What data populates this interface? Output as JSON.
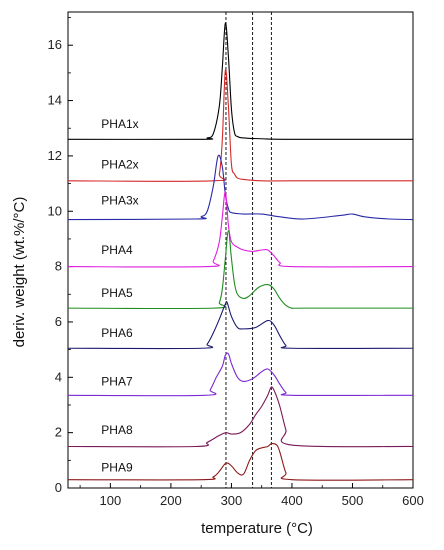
{
  "chart_data": {
    "type": "line",
    "xlabel": "temperature (°C)",
    "ylabel": "deriv. weight (wt.%/°C)",
    "xlim": [
      30,
      600
    ],
    "ylim": [
      0,
      17.2
    ],
    "x_ticks": [
      100,
      200,
      300,
      400,
      500,
      600
    ],
    "y_ticks": [
      0,
      2,
      4,
      6,
      8,
      10,
      12,
      14,
      16
    ],
    "grid": false,
    "legend": "none",
    "reference_lines_x": [
      291,
      335,
      366
    ],
    "series": [
      {
        "name": "PHA1x",
        "color": "#000000",
        "x": [
          30,
          250,
          260,
          270,
          280,
          285,
          290,
          295,
          300,
          305,
          310,
          320,
          350,
          400,
          600
        ],
        "y": [
          12.6,
          12.6,
          12.65,
          12.8,
          13.8,
          15.2,
          16.8,
          15.6,
          13.7,
          12.85,
          12.7,
          12.65,
          12.62,
          12.6,
          12.6
        ]
      },
      {
        "name": "PHA2x",
        "color": "#d42a2a",
        "x": [
          30,
          270,
          280,
          285,
          290,
          295,
          300,
          305,
          310,
          320,
          350,
          400,
          600
        ],
        "y": [
          11.1,
          11.1,
          11.35,
          12.6,
          15.1,
          13.8,
          11.7,
          11.35,
          11.2,
          11.15,
          11.1,
          11.1,
          11.1
        ]
      },
      {
        "name": "PHA3x",
        "color": "#2a2aa8",
        "x": [
          30,
          240,
          250,
          260,
          270,
          278,
          285,
          290,
          295,
          300,
          320,
          350,
          380,
          420,
          480,
          500,
          520,
          560,
          600
        ],
        "y": [
          9.7,
          9.72,
          9.8,
          10.0,
          10.9,
          12.0,
          11.6,
          10.6,
          10.1,
          9.95,
          9.9,
          9.9,
          9.8,
          9.72,
          9.85,
          9.9,
          9.8,
          9.72,
          9.7
        ]
      },
      {
        "name": "PHA4",
        "color": "#e01ee0",
        "x": [
          30,
          260,
          270,
          280,
          285,
          290,
          295,
          300,
          310,
          320,
          335,
          350,
          360,
          370,
          380,
          400,
          600
        ],
        "y": [
          8.0,
          8.0,
          8.2,
          8.9,
          9.8,
          10.7,
          9.5,
          8.9,
          8.7,
          8.6,
          8.55,
          8.6,
          8.6,
          8.4,
          8.15,
          8.0,
          8.0
        ]
      },
      {
        "name": "PHA5",
        "color": "#1f8c1f",
        "x": [
          30,
          270,
          280,
          285,
          290,
          295,
          300,
          305,
          310,
          320,
          330,
          345,
          360,
          370,
          380,
          390,
          400,
          420,
          600
        ],
        "y": [
          6.5,
          6.5,
          6.7,
          7.2,
          8.3,
          9.3,
          8.3,
          7.4,
          7.0,
          6.85,
          6.95,
          7.25,
          7.35,
          7.2,
          6.85,
          6.6,
          6.5,
          6.5,
          6.5
        ]
      },
      {
        "name": "PHA6",
        "color": "#1a1a6e",
        "x": [
          30,
          250,
          260,
          270,
          280,
          290,
          293,
          300,
          310,
          320,
          340,
          360,
          370,
          380,
          390,
          400,
          600
        ],
        "y": [
          5.05,
          5.05,
          5.2,
          5.6,
          6.1,
          6.65,
          6.7,
          6.2,
          5.8,
          5.75,
          5.8,
          6.05,
          5.9,
          5.5,
          5.15,
          5.05,
          5.05
        ]
      },
      {
        "name": "PHA7",
        "color": "#7a2ad4",
        "x": [
          30,
          255,
          265,
          275,
          285,
          290,
          295,
          300,
          310,
          320,
          335,
          350,
          360,
          370,
          380,
          390,
          400,
          600
        ],
        "y": [
          3.35,
          3.35,
          3.55,
          4.0,
          4.4,
          4.8,
          4.85,
          4.5,
          4.0,
          3.85,
          3.95,
          4.2,
          4.3,
          4.1,
          3.75,
          3.45,
          3.35,
          3.35
        ]
      },
      {
        "name": "PHA8",
        "color": "#7a1a5a",
        "x": [
          30,
          240,
          260,
          280,
          291,
          300,
          315,
          330,
          340,
          350,
          360,
          366,
          372,
          380,
          390,
          400,
          600
        ],
        "y": [
          1.5,
          1.5,
          1.65,
          1.9,
          2.0,
          1.95,
          2.0,
          2.3,
          2.65,
          2.95,
          3.35,
          3.65,
          3.45,
          2.95,
          2.1,
          1.55,
          1.5
        ]
      },
      {
        "name": "PHA9",
        "color": "#8c1a1a",
        "x": [
          30,
          250,
          270,
          280,
          291,
          300,
          310,
          320,
          330,
          340,
          350,
          360,
          366,
          375,
          380,
          390,
          400,
          600
        ],
        "y": [
          0.3,
          0.3,
          0.4,
          0.6,
          0.9,
          0.8,
          0.55,
          0.5,
          1.0,
          1.35,
          1.45,
          1.5,
          1.6,
          1.55,
          1.3,
          0.55,
          0.3,
          0.3
        ]
      }
    ],
    "series_label_positions": [
      {
        "x": 85,
        "y": 13.0
      },
      {
        "x": 85,
        "y": 11.55
      },
      {
        "x": 85,
        "y": 10.25
      },
      {
        "x": 85,
        "y": 8.45
      },
      {
        "x": 85,
        "y": 6.9
      },
      {
        "x": 85,
        "y": 5.45
      },
      {
        "x": 85,
        "y": 3.7
      },
      {
        "x": 85,
        "y": 1.95
      },
      {
        "x": 85,
        "y": 0.6
      }
    ]
  }
}
